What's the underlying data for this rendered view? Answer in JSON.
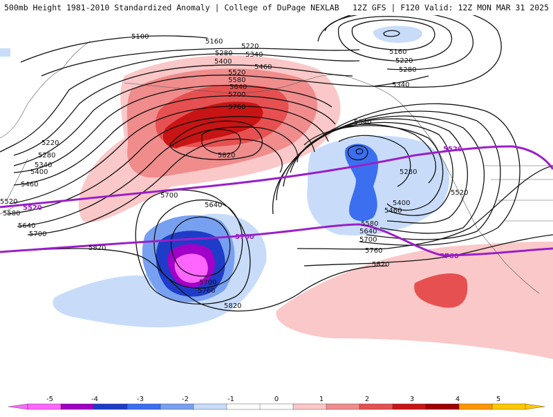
{
  "header": {
    "title_left": "500mb Height 1981-2010 Standardized Anomaly | College of DuPage NEXLAB",
    "title_right": "12Z GFS | F120 Valid: 12Z MON MAR 31 2025"
  },
  "map": {
    "height_labels": [
      {
        "text": "5100"
      },
      {
        "text": "5160"
      },
      {
        "text": "5220"
      },
      {
        "text": "5280"
      },
      {
        "text": "5340"
      },
      {
        "text": "5460"
      },
      {
        "text": "5520"
      },
      {
        "text": "5580"
      },
      {
        "text": "5640"
      },
      {
        "text": "5700"
      },
      {
        "text": "5760"
      },
      {
        "text": "5820"
      },
      {
        "text": "5400"
      },
      {
        "text": "5220"
      },
      {
        "text": "5280"
      },
      {
        "text": "5340"
      },
      {
        "text": "5400"
      },
      {
        "text": "5460"
      },
      {
        "text": "5520"
      },
      {
        "text": "5580"
      },
      {
        "text": "5640"
      },
      {
        "text": "5700"
      },
      {
        "text": "5820"
      },
      {
        "text": "5700"
      },
      {
        "text": "5640"
      },
      {
        "text": "5700"
      },
      {
        "text": "5760"
      },
      {
        "text": "5820"
      },
      {
        "text": "5160"
      },
      {
        "text": "5220"
      },
      {
        "text": "5280"
      },
      {
        "text": "5340"
      },
      {
        "text": "5340"
      },
      {
        "text": "5280"
      },
      {
        "text": "5400"
      },
      {
        "text": "5460"
      },
      {
        "text": "5520"
      },
      {
        "text": "5580"
      },
      {
        "text": "5640"
      },
      {
        "text": "5700"
      },
      {
        "text": "5760"
      },
      {
        "text": "5820"
      },
      {
        "text": "5820"
      },
      {
        "text": "5520"
      }
    ],
    "climo_labels": [
      {
        "text": "5520"
      },
      {
        "text": "5760"
      },
      {
        "text": "5520"
      },
      {
        "text": "5760"
      }
    ],
    "colors": {
      "climo_line": "#9a1fc8",
      "contour": "#111111"
    }
  },
  "colorbar": {
    "ticks": [
      "-5",
      "-4",
      "-3",
      "-2",
      "-1",
      "0",
      "1",
      "2",
      "3",
      "4",
      "5"
    ],
    "colors": [
      "#ff66ff",
      "#a000c8",
      "#1e3cc8",
      "#3c6ef0",
      "#78a0f0",
      "#c8dcfa",
      "#ffffff",
      "#ffffff",
      "#fac8c8",
      "#f08c8c",
      "#e65050",
      "#c81414",
      "#a00000",
      "#ff9600",
      "#ffc800"
    ]
  }
}
